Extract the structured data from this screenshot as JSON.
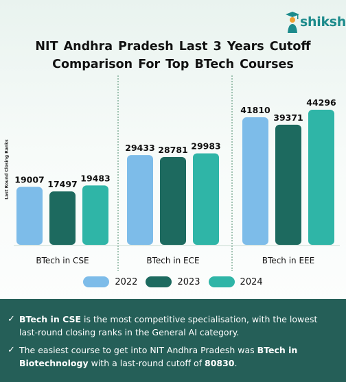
{
  "brand": {
    "name": "shiksha",
    "accent": "#1d8b8c"
  },
  "title_lines": [
    "NIT Andhra Pradesh Last 3 Years Cutoff",
    "Comparison  For Top BTech Courses"
  ],
  "chart_data": {
    "type": "bar",
    "title": "NIT Andhra Pradesh Last 3 Years Cutoff Comparison For Top BTech Courses",
    "ylabel": "Last Round Closing Ranks",
    "xlabel": "",
    "categories": [
      "BTech in CSE",
      "BTech in ECE",
      "BTech in EEE"
    ],
    "series": [
      {
        "name": "2022",
        "color": "#7dbce9",
        "values": [
          19007,
          29433,
          41810
        ]
      },
      {
        "name": "2023",
        "color": "#1d6a5f",
        "values": [
          17497,
          28781,
          39371
        ]
      },
      {
        "name": "2024",
        "color": "#2fb5a7",
        "values": [
          19483,
          29983,
          44296
        ]
      }
    ],
    "ylim": [
      0,
      44296
    ],
    "grid": false,
    "legend_position": "bottom"
  },
  "notes": [
    {
      "icon": "check-icon",
      "parts": [
        {
          "text": "BTech in CSE",
          "bold": true
        },
        {
          "text": " is the most competitive specialisation, with the lowest last-round closing ranks in the General AI category.",
          "bold": false
        }
      ]
    },
    {
      "icon": "check-icon",
      "parts": [
        {
          "text": "The easiest course to get into NIT Andhra Pradesh was ",
          "bold": false
        },
        {
          "text": "BTech in Biotechnology",
          "bold": true
        },
        {
          "text": " with a last-round cutoff of ",
          "bold": false
        },
        {
          "text": "80830",
          "bold": true
        },
        {
          "text": ".",
          "bold": false
        }
      ]
    }
  ],
  "colors": {
    "footer_bg": "#255f58",
    "divider": "#4a8a6a"
  }
}
